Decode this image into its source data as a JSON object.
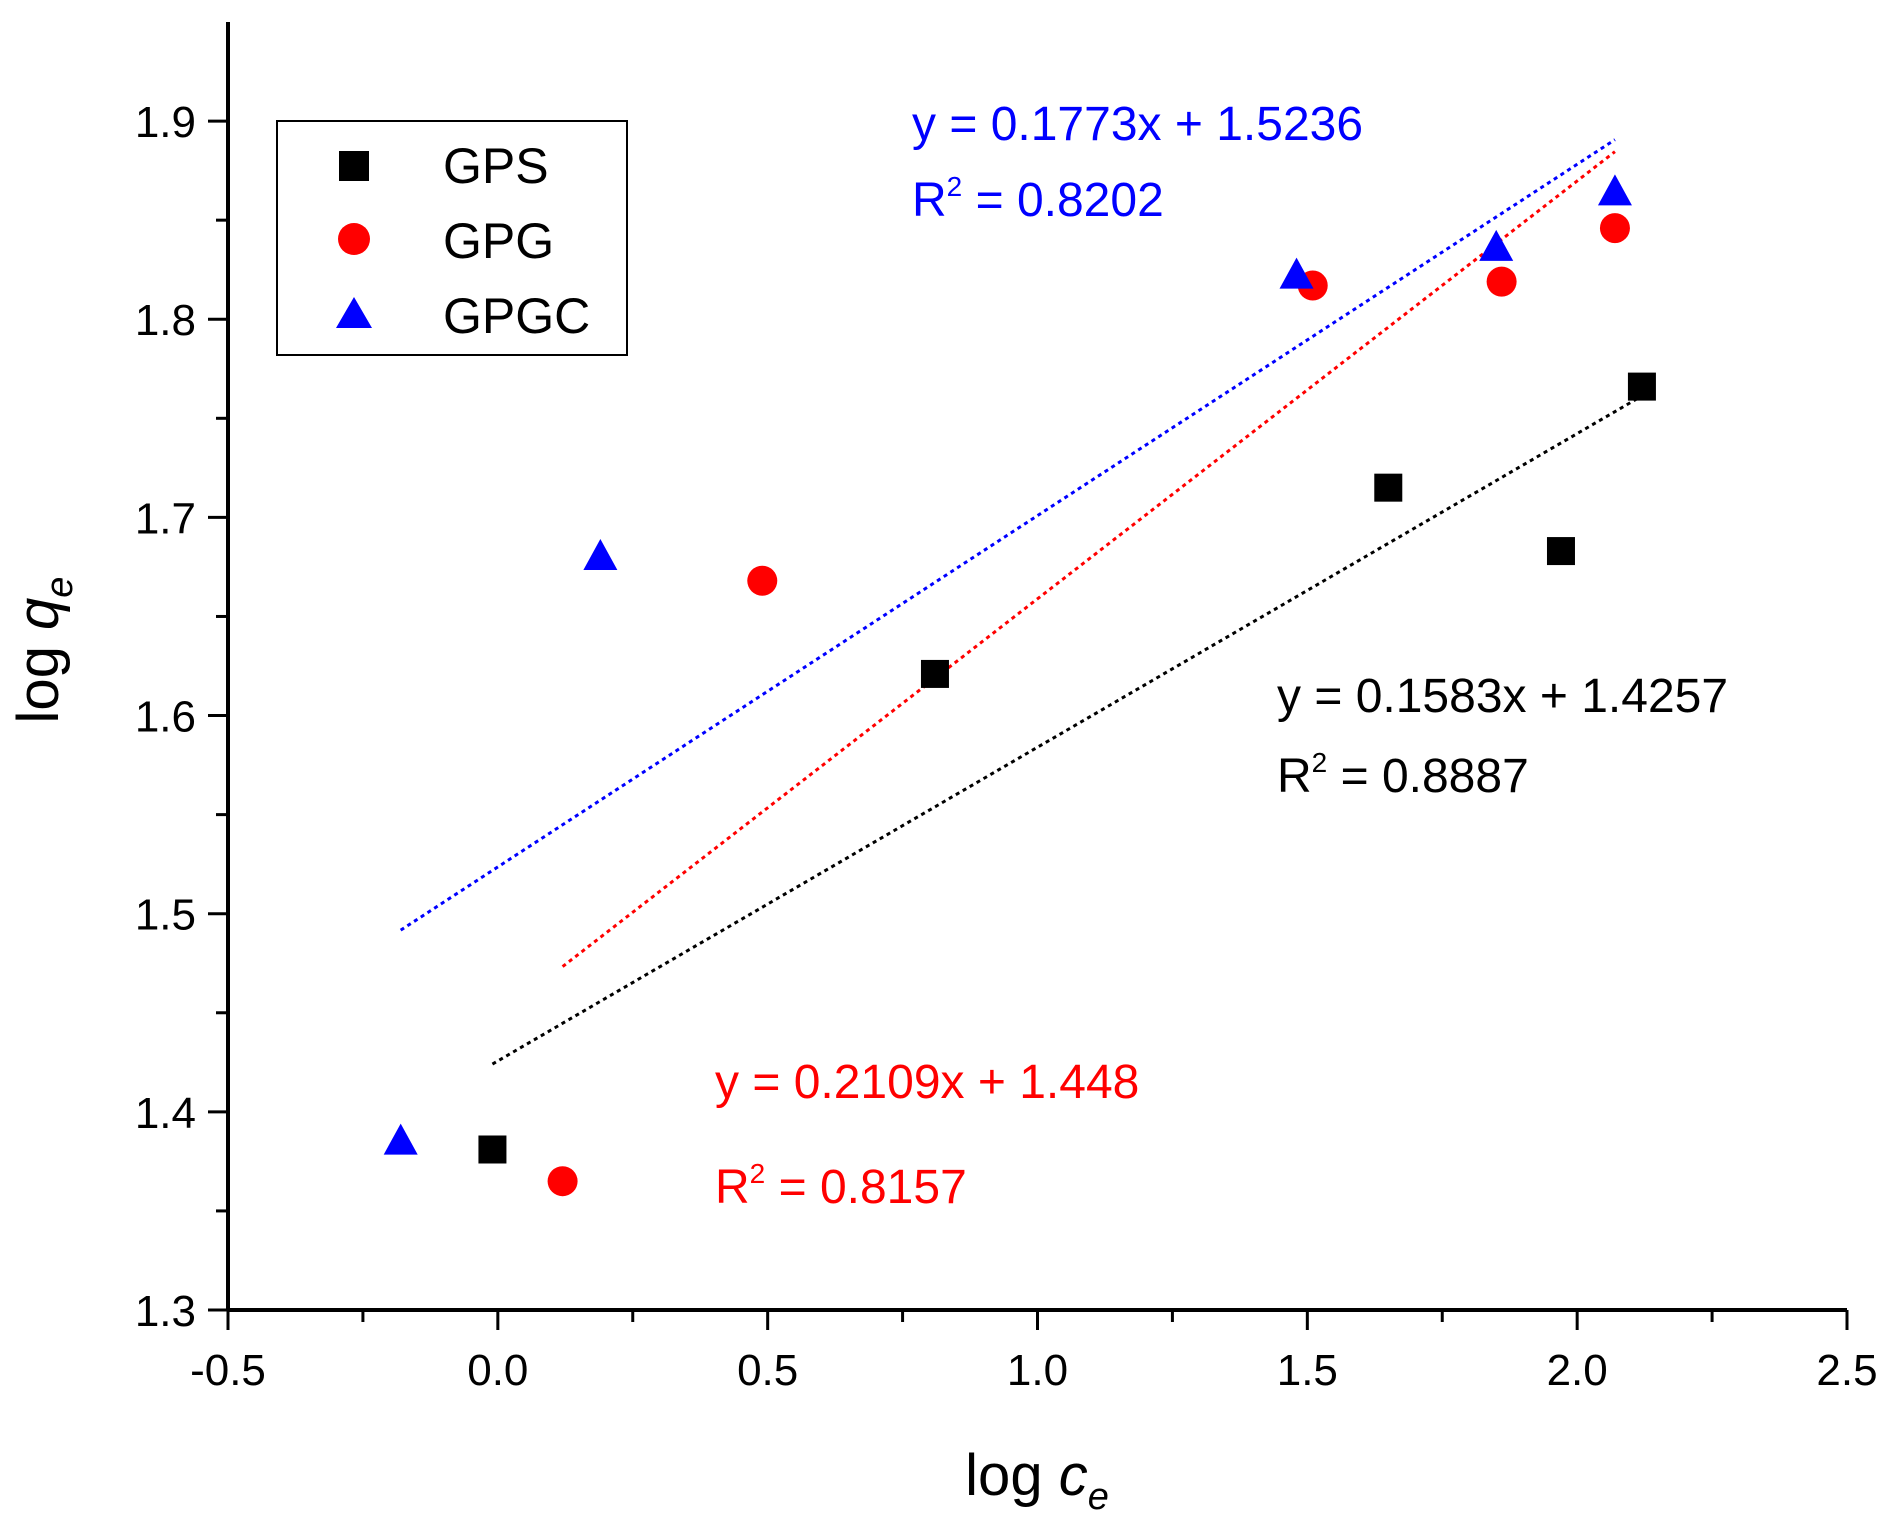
{
  "chart_data": {
    "type": "scatter",
    "xlabel": {
      "main": "log ",
      "var": "c",
      "sub": "e"
    },
    "ylabel": {
      "main": "log ",
      "var": "q",
      "sub": "e"
    },
    "xlim": [
      -0.5,
      2.5
    ],
    "ylim": [
      1.3,
      1.95
    ],
    "xticks": [
      -0.5,
      0.0,
      0.5,
      1.0,
      1.5,
      2.0,
      2.5
    ],
    "xtick_labels": [
      "-0.5",
      "0.0",
      "0.5",
      "1.0",
      "1.5",
      "2.0",
      "2.5"
    ],
    "yticks": [
      1.3,
      1.4,
      1.5,
      1.6,
      1.7,
      1.8,
      1.9
    ],
    "ytick_labels": [
      "1.3",
      "1.4",
      "1.5",
      "1.6",
      "1.7",
      "1.8",
      "1.9"
    ],
    "grid": false,
    "legend_position": "top-left",
    "series": [
      {
        "name": "GPS",
        "marker": "square",
        "color": "#000000",
        "points": [
          [
            -0.01,
            1.381
          ],
          [
            0.81,
            1.621
          ],
          [
            1.65,
            1.715
          ],
          [
            1.97,
            1.683
          ],
          [
            2.12,
            1.766
          ]
        ],
        "fit": {
          "slope": 0.1583,
          "intercept": 1.4257,
          "x_range": [
            -0.01,
            2.12
          ]
        },
        "equation": "y = 0.1583x + 1.4257",
        "r2_prefix": "R",
        "r2_sup": "2",
        "r2_value": " = 0.8887"
      },
      {
        "name": "GPG",
        "marker": "circle",
        "color": "#ff0000",
        "points": [
          [
            0.12,
            1.365
          ],
          [
            0.49,
            1.668
          ],
          [
            1.51,
            1.817
          ],
          [
            1.86,
            1.819
          ],
          [
            2.07,
            1.846
          ]
        ],
        "fit": {
          "slope": 0.2109,
          "intercept": 1.448,
          "x_range": [
            0.12,
            2.07
          ]
        },
        "equation": "y = 0.2109x + 1.448",
        "r2_prefix": "R",
        "r2_sup": "2",
        "r2_value": " = 0.8157"
      },
      {
        "name": "GPGC",
        "marker": "triangle",
        "color": "#0000ff",
        "points": [
          [
            -0.18,
            1.385
          ],
          [
            0.19,
            1.68
          ],
          [
            1.48,
            1.822
          ],
          [
            1.85,
            1.836
          ],
          [
            2.07,
            1.864
          ]
        ],
        "fit": {
          "slope": 0.1773,
          "intercept": 1.5236,
          "x_range": [
            -0.18,
            2.07
          ]
        },
        "equation": "y = 0.1773x + 1.5236",
        "r2_prefix": "R",
        "r2_sup": "2",
        "r2_value": " = 0.8202"
      }
    ]
  }
}
